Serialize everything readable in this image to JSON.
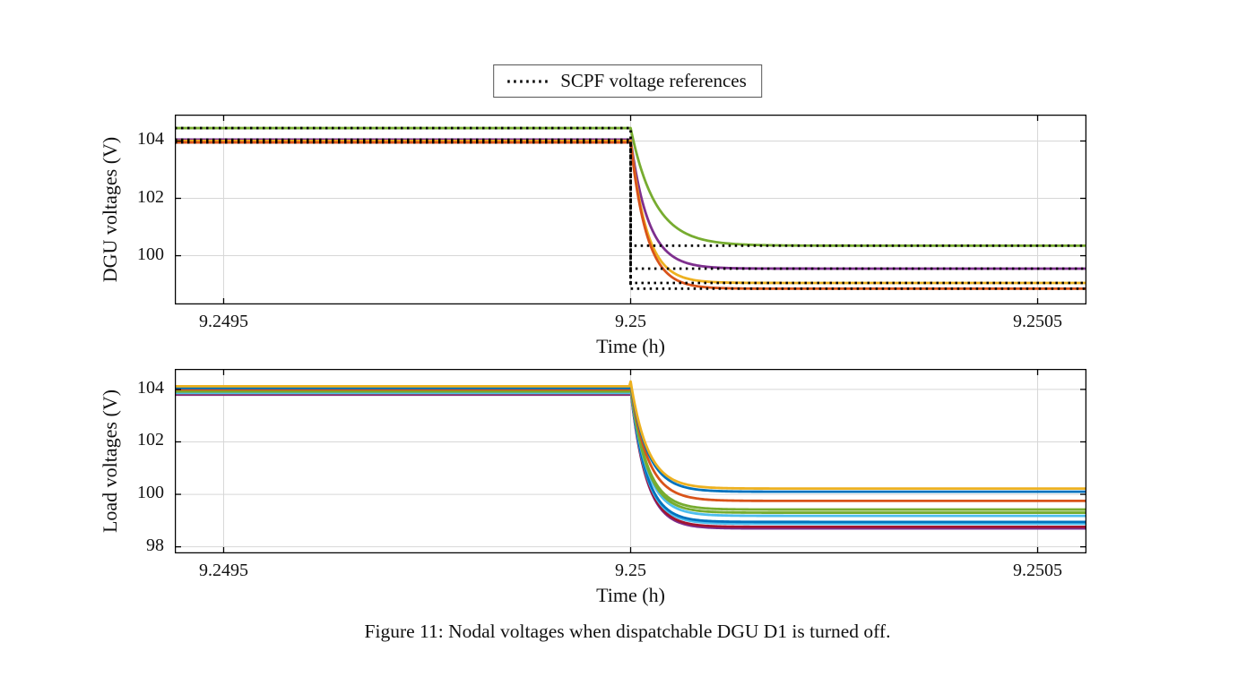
{
  "figure": {
    "caption": "Figure 11: Nodal voltages when dispatchable DGU D1 is turned off."
  },
  "legend": {
    "label": "SCPF voltage references",
    "line_color": "#000000"
  },
  "chart_data": [
    {
      "type": "line",
      "title": "",
      "xlabel": "Time (h)",
      "ylabel": "DGU voltages (V)",
      "xlim": [
        9.24944,
        9.25056
      ],
      "ylim": [
        98.3,
        104.92
      ],
      "xticks": [
        9.2495,
        9.25,
        9.2505
      ],
      "xtick_labels": [
        "9.2495",
        "9.25",
        "9.2505"
      ],
      "yticks": [
        100,
        102,
        104
      ],
      "ytick_labels": [
        "100",
        "102",
        "104"
      ],
      "grid": true,
      "legend_position": "above",
      "step_time": 9.25,
      "peak_bump": 0,
      "series": [
        {
          "color": "#77AC30",
          "initial": 104.45,
          "final": 100.35,
          "tau": 3e-05
        },
        {
          "color": "#7E2F8E",
          "initial": 104.05,
          "final": 99.55,
          "tau": 2.2e-05
        },
        {
          "color": "#EDB120",
          "initial": 104.0,
          "final": 99.05,
          "tau": 2e-05
        },
        {
          "color": "#D95319",
          "initial": 103.95,
          "final": 98.85,
          "tau": 2e-05
        }
      ],
      "references": [
        {
          "pre": 104.45,
          "post": 100.35
        },
        {
          "pre": 104.05,
          "post": 99.55
        },
        {
          "pre": 104.0,
          "post": 99.05
        },
        {
          "pre": 103.95,
          "post": 98.85
        }
      ],
      "reference_style": {
        "color": "#000000",
        "dash": "2.5 4.5",
        "width": 2.8
      }
    },
    {
      "type": "line",
      "title": "",
      "xlabel": "Time (h)",
      "ylabel": "Load voltages (V)",
      "xlim": [
        9.24944,
        9.25056
      ],
      "ylim": [
        97.75,
        104.78
      ],
      "xticks": [
        9.2495,
        9.25,
        9.2505
      ],
      "xtick_labels": [
        "9.2495",
        "9.25",
        "9.2505"
      ],
      "yticks": [
        98,
        100,
        102,
        104
      ],
      "ytick_labels": [
        "98",
        "100",
        "102",
        "104"
      ],
      "grid": true,
      "step_time": 9.25,
      "peak_bump": 0.18,
      "series": [
        {
          "color": "#7E2F8E",
          "initial": 103.8,
          "final": 98.7,
          "tau": 1.9e-05
        },
        {
          "color": "#A2142F",
          "initial": 103.83,
          "final": 98.76,
          "tau": 1.9e-05
        },
        {
          "color": "#4DBEEE",
          "initial": 103.86,
          "final": 98.88,
          "tau": 1.9e-05
        },
        {
          "color": "#0072BD",
          "initial": 103.9,
          "final": 98.95,
          "tau": 1.9e-05
        },
        {
          "color": "#4DBEEE",
          "initial": 103.88,
          "final": 99.18,
          "tau": 2e-05
        },
        {
          "color": "#77AC30",
          "initial": 103.92,
          "final": 99.3,
          "tau": 2e-05
        },
        {
          "color": "#77AC30",
          "initial": 103.96,
          "final": 99.42,
          "tau": 2e-05
        },
        {
          "color": "#D95319",
          "initial": 104.0,
          "final": 99.75,
          "tau": 2.1e-05
        },
        {
          "color": "#0072BD",
          "initial": 104.05,
          "final": 100.1,
          "tau": 2.1e-05
        },
        {
          "color": "#EDB120",
          "initial": 104.12,
          "final": 100.22,
          "tau": 2.1e-05
        }
      ],
      "references": []
    }
  ]
}
